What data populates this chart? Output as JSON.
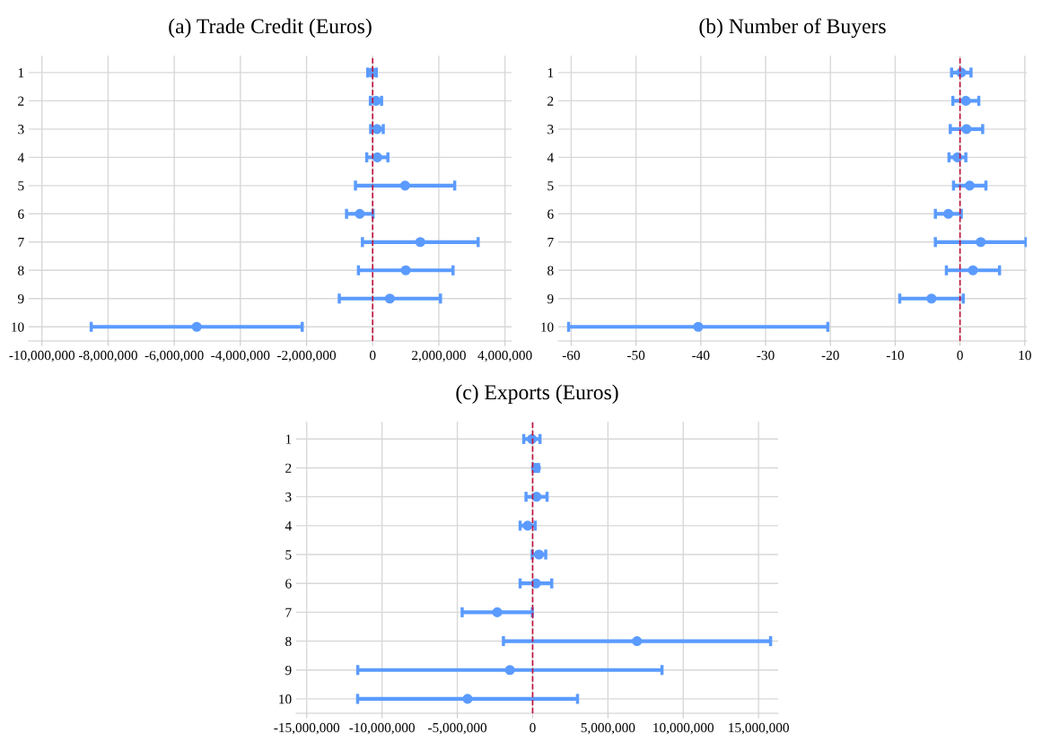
{
  "chart_data": [
    {
      "type": "scatter",
      "title": "(a) Trade Credit (Euros)",
      "orientation": "horizontal",
      "categories": [
        "1",
        "2",
        "3",
        "4",
        "5",
        "6",
        "7",
        "8",
        "9",
        "10"
      ],
      "series": [
        {
          "color": "#5b9bff",
          "values": [
            -20000,
            100000,
            130000,
            140000,
            980000,
            -390000,
            1440000,
            1000000,
            520000,
            -5320000
          ],
          "errors": [
            130000,
            170000,
            190000,
            320000,
            1500000,
            400000,
            1750000,
            1430000,
            1530000,
            3190000
          ]
        }
      ],
      "xlim": [
        -10400000,
        4200000
      ],
      "xticks": [
        {
          "value": -10000000,
          "label": "-10,000,000"
        },
        {
          "value": -8000000,
          "label": "-8,000,000"
        },
        {
          "value": -6000000,
          "label": "-6,000,000"
        },
        {
          "value": -4000000,
          "label": "-4,000,000"
        },
        {
          "value": -2000000,
          "label": "-2,000,000"
        },
        0,
        {
          "value": 2000000,
          "label": "2,000,000"
        },
        {
          "value": 4000000,
          "label": "4,000,000"
        }
      ],
      "ref_lines": [
        {
          "axis": "x",
          "value": 0,
          "color": "#c0143c",
          "line_style": "dashed"
        }
      ],
      "grid": true,
      "marker": "circle"
    },
    {
      "type": "scatter",
      "title": "(b) Number of Buyers",
      "orientation": "horizontal",
      "categories": [
        "1",
        "2",
        "3",
        "4",
        "5",
        "6",
        "7",
        "8",
        "9",
        "10"
      ],
      "series": [
        {
          "color": "#5b9bff",
          "values": [
            0.2,
            0.9,
            1.0,
            -0.4,
            1.5,
            -1.8,
            3.2,
            2.0,
            -4.4,
            -40.4
          ],
          "errors": [
            1.5,
            2.0,
            2.5,
            1.3,
            2.5,
            2.0,
            7.0,
            4.1,
            4.9,
            20
          ]
        }
      ],
      "xlim": [
        -62,
        10.3
      ],
      "xticks": [
        -60,
        -50,
        -40,
        -30,
        -20,
        -10,
        0,
        10
      ],
      "ref_lines": [
        {
          "axis": "x",
          "value": 0,
          "color": "#c0143c",
          "line_style": "dashed"
        }
      ],
      "grid": true,
      "marker": "circle"
    },
    {
      "type": "scatter",
      "title": "(c) Exports (Euros)",
      "orientation": "horizontal",
      "categories": [
        "1",
        "2",
        "3",
        "4",
        "5",
        "6",
        "7",
        "8",
        "9",
        "10"
      ],
      "series": [
        {
          "color": "#5b9bff",
          "values": [
            -50000,
            220000,
            260000,
            -330000,
            420000,
            220000,
            -2350000,
            6930000,
            -1510000,
            -4320000
          ],
          "errors": [
            540000,
            170000,
            700000,
            500000,
            450000,
            1050000,
            2330000,
            8870000,
            10100000,
            7300000
          ]
        }
      ],
      "xlim": [
        -15700000,
        16300000
      ],
      "xticks": [
        {
          "value": -15000000,
          "label": "-15,000,000"
        },
        {
          "value": -10000000,
          "label": "-10,000,000"
        },
        {
          "value": -5000000,
          "label": "-5,000,000"
        },
        0,
        {
          "value": 5000000,
          "label": "5,000,000"
        },
        {
          "value": 10000000,
          "label": "10,000,000"
        },
        {
          "value": 15000000,
          "label": "15,000,000"
        }
      ],
      "ref_lines": [
        {
          "axis": "x",
          "value": 0,
          "color": "#c0143c",
          "line_style": "dashed"
        }
      ],
      "grid": true,
      "marker": "circle"
    }
  ]
}
